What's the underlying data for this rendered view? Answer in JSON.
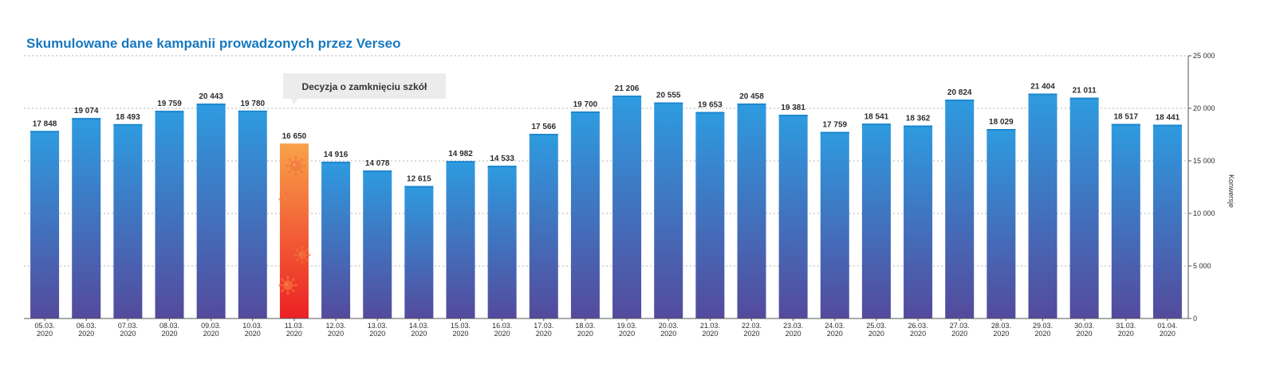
{
  "chart_data": {
    "type": "bar",
    "title": "Skumulowane dane kampanii prowadzonych przez Verseo",
    "ylabel": "Konwersje",
    "ylim": [
      0,
      25000
    ],
    "yticks": [
      "0",
      "5 000",
      "10 000",
      "15 000",
      "20 000",
      "25 000"
    ],
    "ytick_values": [
      0,
      5000,
      10000,
      15000,
      20000,
      25000
    ],
    "y_axis_side": "right",
    "grid": true,
    "categories": [
      [
        "05.03.",
        "2020"
      ],
      [
        "06.03.",
        "2020"
      ],
      [
        "07.03.",
        "2020"
      ],
      [
        "08.03.",
        "2020"
      ],
      [
        "09.03.",
        "2020"
      ],
      [
        "10.03.",
        "2020"
      ],
      [
        "11.03.",
        "2020"
      ],
      [
        "12.03.",
        "2020"
      ],
      [
        "13.03.",
        "2020"
      ],
      [
        "14.03.",
        "2020"
      ],
      [
        "15.03.",
        "2020"
      ],
      [
        "16.03.",
        "2020"
      ],
      [
        "17.03.",
        "2020"
      ],
      [
        "18.03.",
        "2020"
      ],
      [
        "19.03.",
        "2020"
      ],
      [
        "20.03.",
        "2020"
      ],
      [
        "21.03.",
        "2020"
      ],
      [
        "22.03.",
        "2020"
      ],
      [
        "23.03.",
        "2020"
      ],
      [
        "24.03.",
        "2020"
      ],
      [
        "25.03.",
        "2020"
      ],
      [
        "26.03.",
        "2020"
      ],
      [
        "27.03.",
        "2020"
      ],
      [
        "28.03.",
        "2020"
      ],
      [
        "29.03.",
        "2020"
      ],
      [
        "30.03.",
        "2020"
      ],
      [
        "31.03.",
        "2020"
      ],
      [
        "01.04.",
        "2020"
      ]
    ],
    "values": [
      17848,
      19074,
      18493,
      19759,
      20443,
      19780,
      16650,
      14916,
      14078,
      12615,
      14982,
      14533,
      17566,
      19700,
      21206,
      20555,
      19653,
      20458,
      19381,
      17759,
      18541,
      18362,
      20824,
      18029,
      21404,
      21011,
      18517,
      18441
    ],
    "value_labels": [
      "17 848",
      "19 074",
      "18 493",
      "19 759",
      "20 443",
      "19 780",
      "16 650",
      "14 916",
      "14 078",
      "12 615",
      "14 982",
      "14 533",
      "17 566",
      "19 700",
      "21 206",
      "20 555",
      "19 653",
      "20 458",
      "19 381",
      "17 759",
      "18 541",
      "18 362",
      "20 824",
      "18 029",
      "21 404",
      "21 011",
      "18 517",
      "18 441"
    ],
    "highlight_index": 6,
    "annotation": {
      "text": "Decyzja o zamknięciu szkół",
      "index": 6
    },
    "colors": {
      "bar_top": "#2e9be0",
      "bar_bottom": "#544a9c",
      "highlight_top": "#f8a24a",
      "highlight_bottom": "#ec2024",
      "virus_icon": "#f3783c",
      "annotation_bg": "#ececec",
      "title": "#1778c0"
    }
  }
}
